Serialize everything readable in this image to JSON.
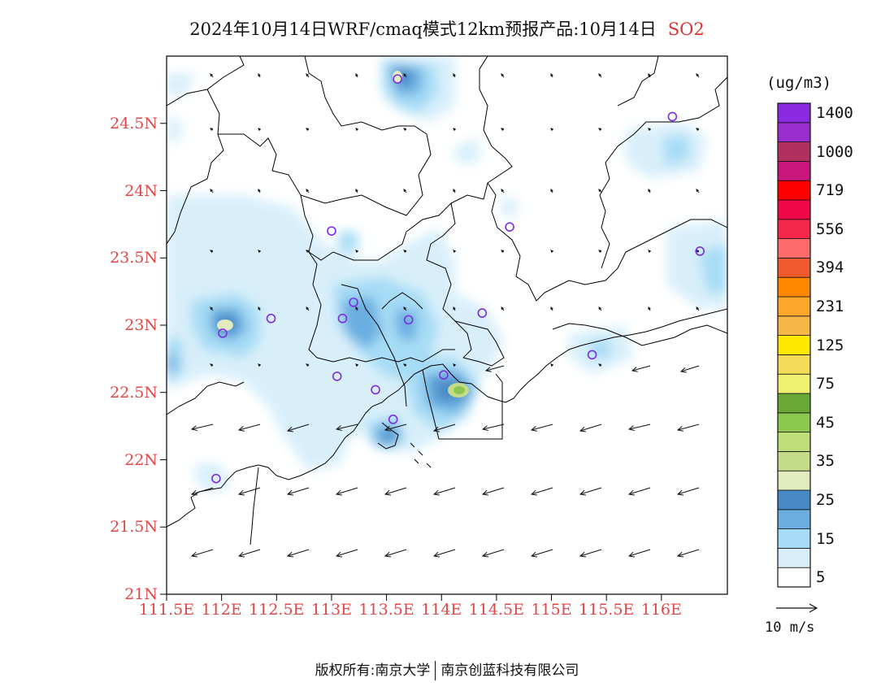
{
  "title": {
    "main": "2024年10月14日WRF/cmaq模式12km预报产品:10月14日",
    "pollutant": "SO2"
  },
  "map": {
    "lat_labels": [
      "24.5N",
      "24N",
      "23.5N",
      "23N",
      "22.5N",
      "22N",
      "21.5N",
      "21N"
    ],
    "lon_labels": [
      "111.5E",
      "112E",
      "112.5E",
      "113E",
      "113.5E",
      "114E",
      "114.5E",
      "115E",
      "115.5E",
      "116E"
    ],
    "extent": {
      "lon": [
        111.5,
        116.6
      ],
      "lat": [
        21.0,
        25.0
      ]
    },
    "stations": [
      {
        "lon": 113.6,
        "lat": 24.83
      },
      {
        "lon": 116.1,
        "lat": 24.55
      },
      {
        "lon": 113.0,
        "lat": 23.7
      },
      {
        "lon": 114.62,
        "lat": 23.73
      },
      {
        "lon": 116.35,
        "lat": 23.55
      },
      {
        "lon": 113.2,
        "lat": 23.17
      },
      {
        "lon": 112.45,
        "lat": 23.05
      },
      {
        "lon": 113.1,
        "lat": 23.05
      },
      {
        "lon": 113.7,
        "lat": 23.04
      },
      {
        "lon": 114.37,
        "lat": 23.09
      },
      {
        "lon": 112.01,
        "lat": 22.94
      },
      {
        "lon": 115.37,
        "lat": 22.78
      },
      {
        "lon": 113.05,
        "lat": 22.62
      },
      {
        "lon": 114.02,
        "lat": 22.63
      },
      {
        "lon": 113.4,
        "lat": 22.52
      },
      {
        "lon": 113.56,
        "lat": 22.3
      },
      {
        "lon": 111.95,
        "lat": 21.86
      }
    ]
  },
  "legend": {
    "unit": "(ug/m3)",
    "bins": [
      {
        "color": "#ffffff",
        "label": "5"
      },
      {
        "color": "#d8effa",
        "label": ""
      },
      {
        "color": "#a6dcf5",
        "label": "15"
      },
      {
        "color": "#6aaee0",
        "label": ""
      },
      {
        "color": "#4689c5",
        "label": "25"
      },
      {
        "color": "#e2ebc0",
        "label": ""
      },
      {
        "color": "#c4dc88",
        "label": "35"
      },
      {
        "color": "#bedf7a",
        "label": ""
      },
      {
        "color": "#8cc850",
        "label": "45"
      },
      {
        "color": "#6aa838",
        "label": ""
      },
      {
        "color": "#eef070",
        "label": "75"
      },
      {
        "color": "#f4dc58",
        "label": ""
      },
      {
        "color": "#fee800",
        "label": "125"
      },
      {
        "color": "#f7b648",
        "label": ""
      },
      {
        "color": "#fca82c",
        "label": "231"
      },
      {
        "color": "#ff8800",
        "label": ""
      },
      {
        "color": "#ee5a2e",
        "label": "394"
      },
      {
        "color": "#ff6a6a",
        "label": ""
      },
      {
        "color": "#f5284c",
        "label": "556"
      },
      {
        "color": "#f00848",
        "label": ""
      },
      {
        "color": "#ff0000",
        "label": "719"
      },
      {
        "color": "#c8167c",
        "label": ""
      },
      {
        "color": "#b03060",
        "label": "1000"
      },
      {
        "color": "#9a2ecc",
        "label": ""
      },
      {
        "color": "#8a2be2",
        "label": "1400"
      }
    ],
    "wind_ref": "10 m/s"
  },
  "footer": {
    "owner": "版权所有:南京大学",
    "company": "南京创蓝科技有限公司"
  },
  "colors": {
    "axis_label": "#e04848",
    "pollutant": "#e03030",
    "station": "#7a2ee0"
  }
}
